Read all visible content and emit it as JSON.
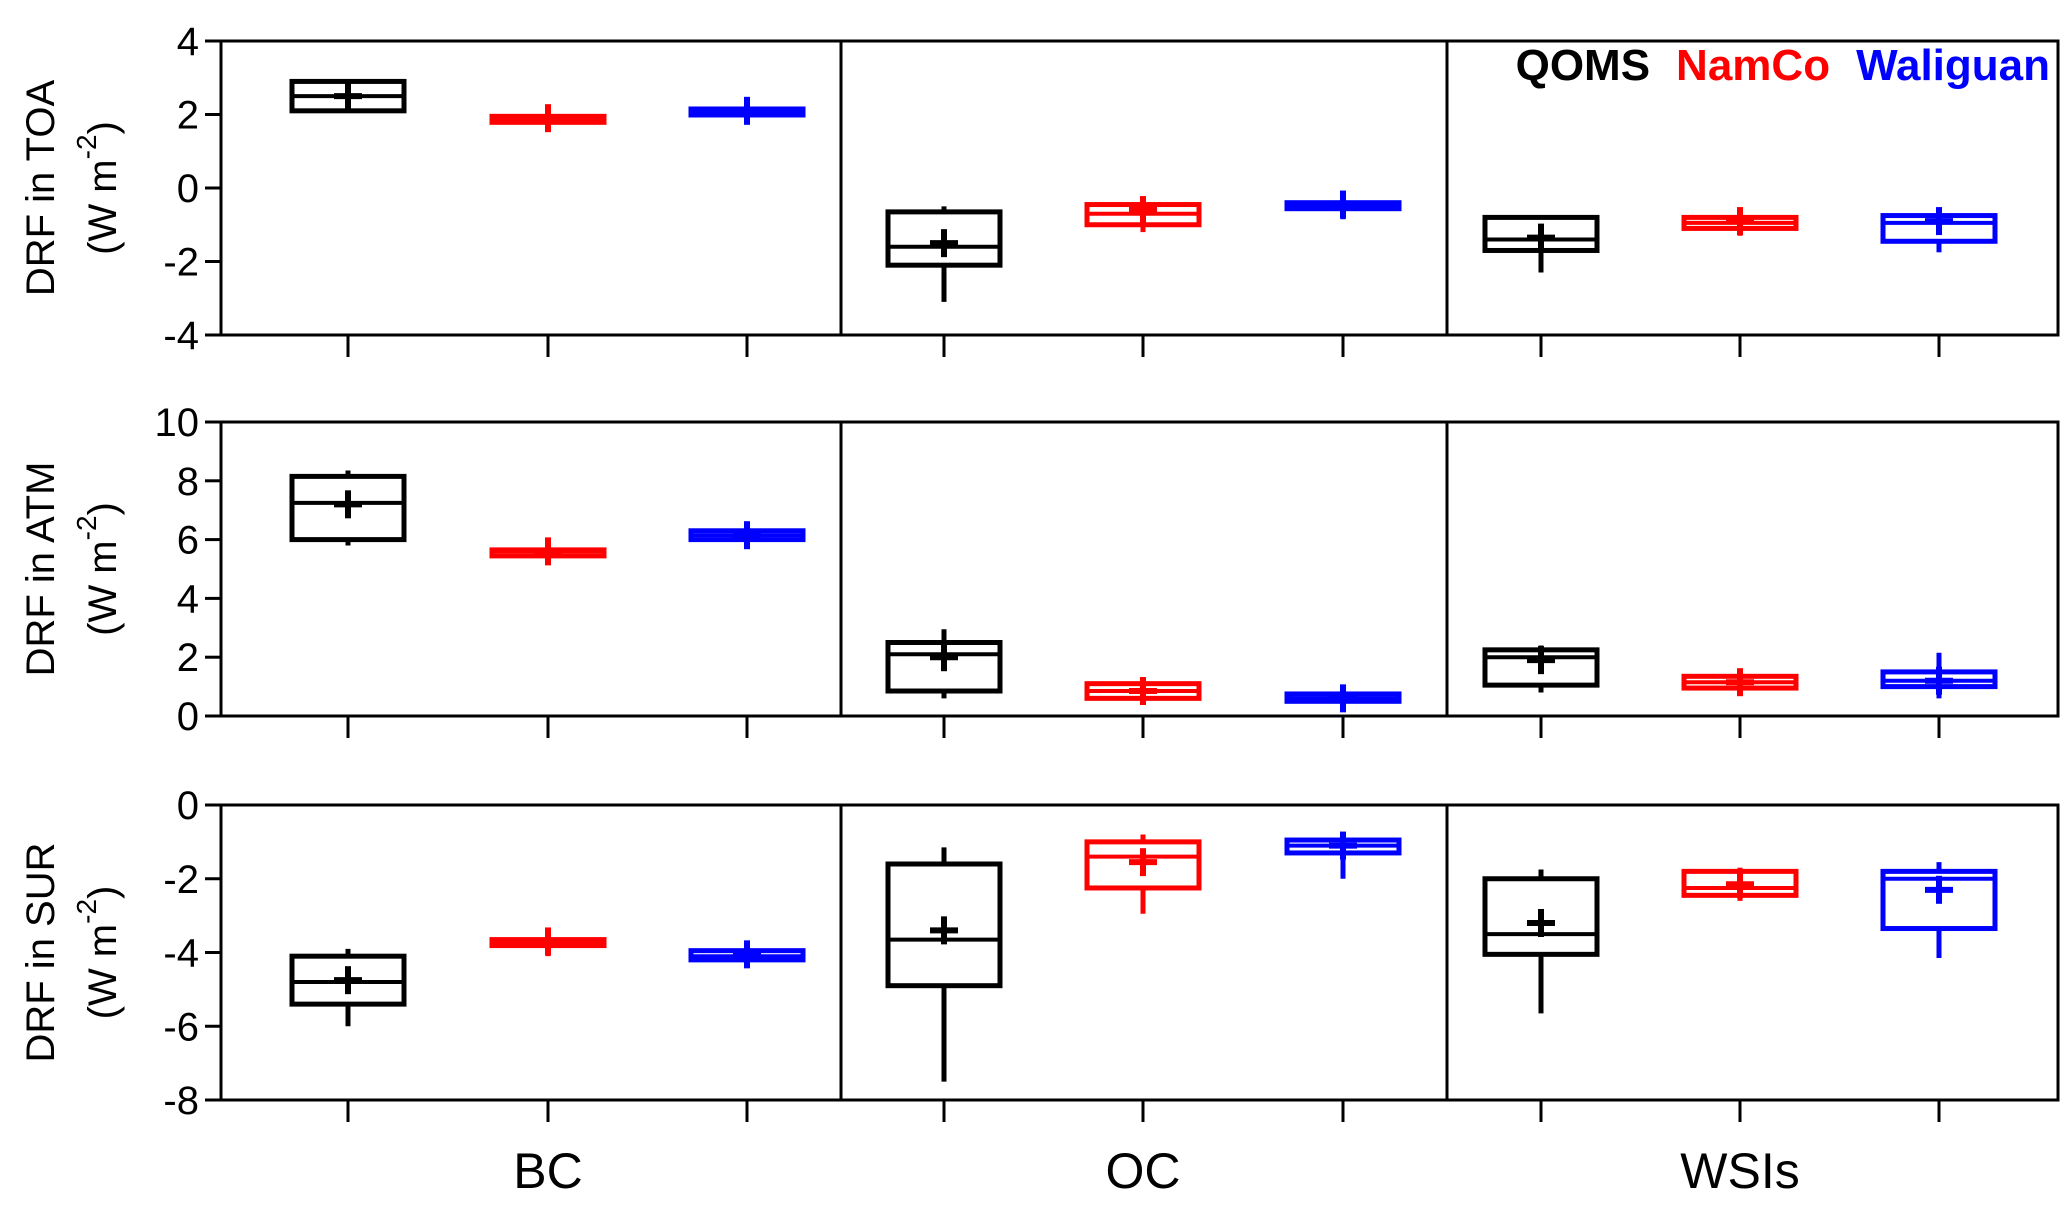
{
  "chart_data": {
    "type": "box",
    "groups": [
      "BC",
      "OC",
      "WSIs"
    ],
    "sites": [
      {
        "name": "QOMS",
        "color": "#000000"
      },
      {
        "name": "NamCo",
        "color": "#ff0000"
      },
      {
        "name": "Waliguan",
        "color": "#0000ff"
      }
    ],
    "legend": {
      "position": "top-right",
      "panel": 0
    },
    "panels": [
      {
        "id": "toa",
        "ylabel_line1": "DRF in TOA",
        "ylabel_unit_prefix": "(W m",
        "ylabel_unit_exp": "-2",
        "ylabel_unit_suffix": ")",
        "ylim": [
          -4,
          4
        ],
        "yticks": [
          -4,
          -2,
          0,
          2,
          4
        ],
        "ytick_labels": [
          "-4",
          "-2",
          "0",
          "2",
          "4"
        ],
        "boxes": [
          {
            "group": "BC",
            "site": "QOMS",
            "min": 2.1,
            "q1": 2.1,
            "median": 2.5,
            "q3": 2.9,
            "max": 2.9,
            "mean": 2.5
          },
          {
            "group": "BC",
            "site": "NamCo",
            "min": 1.6,
            "q1": 1.85,
            "median": 1.9,
            "q3": 1.95,
            "max": 2.2,
            "mean": 1.9
          },
          {
            "group": "BC",
            "site": "Waliguan",
            "min": 1.8,
            "q1": 2.0,
            "median": 2.1,
            "q3": 2.15,
            "max": 2.4,
            "mean": 2.1
          },
          {
            "group": "OC",
            "site": "QOMS",
            "min": -3.1,
            "q1": -2.1,
            "median": -1.6,
            "q3": -0.65,
            "max": -0.5,
            "mean": -1.5
          },
          {
            "group": "OC",
            "site": "NamCo",
            "min": -1.2,
            "q1": -1.0,
            "median": -0.7,
            "q3": -0.45,
            "max": -0.35,
            "mean": -0.6
          },
          {
            "group": "OC",
            "site": "Waliguan",
            "min": -0.85,
            "q1": -0.55,
            "median": -0.5,
            "q3": -0.4,
            "max": -0.15,
            "mean": -0.45
          },
          {
            "group": "WSIs",
            "site": "QOMS",
            "min": -2.3,
            "q1": -1.7,
            "median": -1.4,
            "q3": -0.8,
            "max": -0.75,
            "mean": -1.35
          },
          {
            "group": "WSIs",
            "site": "NamCo",
            "min": -1.3,
            "q1": -1.1,
            "median": -0.95,
            "q3": -0.8,
            "max": -0.65,
            "mean": -0.9
          },
          {
            "group": "WSIs",
            "site": "Waliguan",
            "min": -1.75,
            "q1": -1.45,
            "median": -0.95,
            "q3": -0.75,
            "max": -0.6,
            "mean": -0.9
          }
        ]
      },
      {
        "id": "atm",
        "ylabel_line1": "DRF in ATM",
        "ylabel_unit_prefix": "(W m",
        "ylabel_unit_exp": "-2",
        "ylabel_unit_suffix": ")",
        "ylim": [
          0,
          10
        ],
        "yticks": [
          0,
          2,
          4,
          6,
          8,
          10
        ],
        "ytick_labels": [
          "0",
          "2",
          "4",
          "6",
          "8",
          "10"
        ],
        "boxes": [
          {
            "group": "BC",
            "site": "QOMS",
            "min": 5.8,
            "q1": 6.0,
            "median": 7.25,
            "q3": 8.15,
            "max": 8.35,
            "mean": 7.2
          },
          {
            "group": "BC",
            "site": "NamCo",
            "min": 5.3,
            "q1": 5.55,
            "median": 5.6,
            "q3": 5.65,
            "max": 6.0,
            "mean": 5.6
          },
          {
            "group": "BC",
            "site": "Waliguan",
            "min": 5.75,
            "q1": 6.0,
            "median": 6.15,
            "q3": 6.3,
            "max": 6.55,
            "mean": 6.15
          },
          {
            "group": "OC",
            "site": "QOMS",
            "min": 0.6,
            "q1": 0.85,
            "median": 2.1,
            "q3": 2.5,
            "max": 2.95,
            "mean": 2.0
          },
          {
            "group": "OC",
            "site": "NamCo",
            "min": 0.5,
            "q1": 0.6,
            "median": 0.85,
            "q3": 1.1,
            "max": 1.3,
            "mean": 0.85
          },
          {
            "group": "OC",
            "site": "Waliguan",
            "min": 0.25,
            "q1": 0.5,
            "median": 0.6,
            "q3": 0.75,
            "max": 1.0,
            "mean": 0.6
          },
          {
            "group": "WSIs",
            "site": "QOMS",
            "min": 0.8,
            "q1": 1.05,
            "median": 2.0,
            "q3": 2.25,
            "max": 2.4,
            "mean": 1.9
          },
          {
            "group": "WSIs",
            "site": "NamCo",
            "min": 0.85,
            "q1": 0.95,
            "median": 1.15,
            "q3": 1.35,
            "max": 1.55,
            "mean": 1.15
          },
          {
            "group": "WSIs",
            "site": "Waliguan",
            "min": 0.6,
            "q1": 1.0,
            "median": 1.2,
            "q3": 1.5,
            "max": 2.15,
            "mean": 1.2
          }
        ]
      },
      {
        "id": "sur",
        "ylabel_line1": "DRF in SUR",
        "ylabel_unit_prefix": "(W m",
        "ylabel_unit_exp": "-2",
        "ylabel_unit_suffix": ")",
        "ylim": [
          -8,
          0
        ],
        "yticks": [
          -8,
          -6,
          -4,
          -2,
          0
        ],
        "ytick_labels": [
          "-8",
          "-6",
          "-4",
          "-2",
          "0"
        ],
        "boxes": [
          {
            "group": "BC",
            "site": "QOMS",
            "min": -6.0,
            "q1": -5.4,
            "median": -4.8,
            "q3": -4.1,
            "max": -3.9,
            "mean": -4.75
          },
          {
            "group": "BC",
            "site": "NamCo",
            "min": -4.1,
            "q1": -3.75,
            "median": -3.7,
            "q3": -3.65,
            "max": -3.45,
            "mean": -3.7
          },
          {
            "group": "BC",
            "site": "Waliguan",
            "min": -4.4,
            "q1": -4.2,
            "median": -4.1,
            "q3": -3.95,
            "max": -3.75,
            "mean": -4.05
          },
          {
            "group": "OC",
            "site": "QOMS",
            "min": -7.5,
            "q1": -4.9,
            "median": -3.65,
            "q3": -1.6,
            "max": -1.15,
            "mean": -3.4
          },
          {
            "group": "OC",
            "site": "NamCo",
            "min": -2.95,
            "q1": -2.25,
            "median": -1.4,
            "q3": -1.0,
            "max": -0.8,
            "mean": -1.55
          },
          {
            "group": "OC",
            "site": "Waliguan",
            "min": -2.0,
            "q1": -1.3,
            "median": -1.1,
            "q3": -0.95,
            "max": -0.8,
            "mean": -1.1
          },
          {
            "group": "WSIs",
            "site": "QOMS",
            "min": -5.65,
            "q1": -4.05,
            "median": -3.5,
            "q3": -2.0,
            "max": -1.75,
            "mean": -3.2
          },
          {
            "group": "WSIs",
            "site": "NamCo",
            "min": -2.6,
            "q1": -2.45,
            "median": -2.25,
            "q3": -1.8,
            "max": -1.7,
            "mean": -2.15
          },
          {
            "group": "WSIs",
            "site": "Waliguan",
            "min": -4.15,
            "q1": -3.35,
            "median": -2.0,
            "q3": -1.8,
            "max": -1.55,
            "mean": -2.3
          }
        ]
      }
    ]
  }
}
